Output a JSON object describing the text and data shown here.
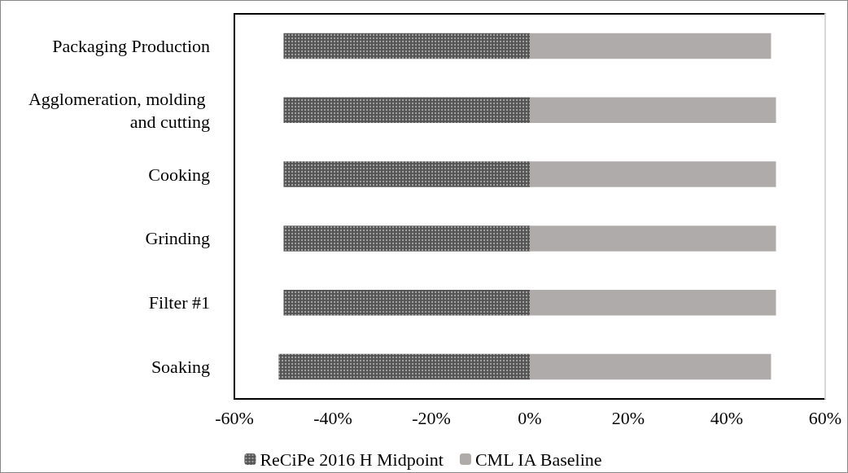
{
  "chart_data": {
    "type": "bar",
    "orientation": "horizontal",
    "stacked": true,
    "categories": [
      "Packaging Production",
      "Agglomeration, molding and cutting",
      "Cooking",
      "Grinding",
      "Filter #1",
      "Soaking"
    ],
    "series": [
      {
        "name": "ReCiPe 2016 H Midpoint",
        "color": "#555555",
        "values": [
          -50,
          -50,
          -50,
          -50,
          -50,
          -51
        ]
      },
      {
        "name": "CML IA Baseline",
        "color": "#afabaa",
        "values": [
          49,
          50,
          50,
          50,
          50,
          49
        ]
      }
    ],
    "xlim": [
      -60,
      60
    ],
    "xticks": [
      {
        "value": -60,
        "label": "-60%"
      },
      {
        "value": -40,
        "label": "-40%"
      },
      {
        "value": -20,
        "label": "-20%"
      },
      {
        "value": 0,
        "label": "0%"
      },
      {
        "value": 20,
        "label": "20%"
      },
      {
        "value": 40,
        "label": "40%"
      },
      {
        "value": 60,
        "label": "60%"
      }
    ],
    "grid": false,
    "legend": "bottom"
  }
}
